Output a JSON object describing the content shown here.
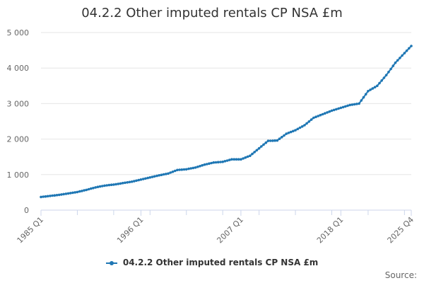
{
  "title": "04.2.2 Other imputed rentals CP NSA £m",
  "source_label": "Source:",
  "colors": {
    "series": "#1f77b4",
    "grid": "#e6e6e6",
    "axis": "#ccd6eb",
    "text": "#666666"
  },
  "chart_data": {
    "type": "line",
    "title": "04.2.2 Other imputed rentals CP NSA £m",
    "xlabel": "",
    "ylabel": "",
    "ylim": [
      0,
      5000
    ],
    "yticks": [
      0,
      1000,
      2000,
      3000,
      4000,
      5000
    ],
    "ytick_labels": [
      "0",
      "1 000",
      "2 000",
      "3 000",
      "4 000",
      "5 000"
    ],
    "x_range": [
      "1985 Q1",
      "2025 Q4"
    ],
    "xtick_labels": [
      "1985 Q1",
      "1996 Q1",
      "2007 Q1",
      "2018 Q1",
      "2025 Q4"
    ],
    "grid": true,
    "legend": "bottom-center",
    "series": [
      {
        "name": "04.2.2 Other imputed rentals CP NSA £m",
        "x": [
          "1985",
          "1986",
          "1987",
          "1988",
          "1989",
          "1990",
          "1991",
          "1992",
          "1993",
          "1994",
          "1995",
          "1996",
          "1997",
          "1998",
          "1999",
          "2000",
          "2001",
          "2002",
          "2003",
          "2004",
          "2005",
          "2006",
          "2007",
          "2008",
          "2009",
          "2010",
          "2011",
          "2012",
          "2013",
          "2014",
          "2015",
          "2016",
          "2017",
          "2018",
          "2019",
          "2020",
          "2021",
          "2022",
          "2023",
          "2024",
          "2025"
        ],
        "values": [
          370,
          400,
          430,
          470,
          510,
          570,
          640,
          690,
          720,
          760,
          800,
          860,
          920,
          980,
          1030,
          1130,
          1150,
          1200,
          1280,
          1340,
          1360,
          1430,
          1430,
          1530,
          1740,
          1950,
          1960,
          2150,
          2250,
          2390,
          2600,
          2700,
          2800,
          2880,
          2960,
          3000,
          3350,
          3500,
          3800,
          4150,
          4420
        ]
      }
    ]
  }
}
